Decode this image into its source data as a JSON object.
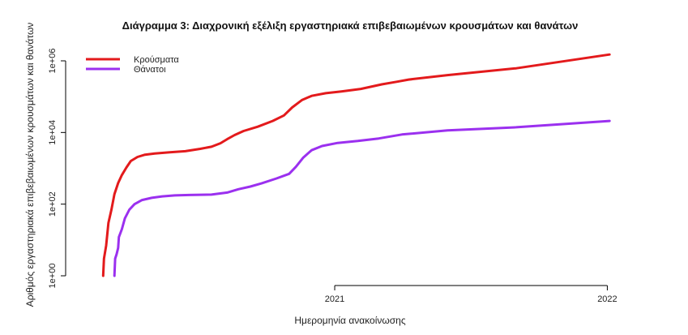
{
  "chart_data": {
    "type": "line",
    "title": "Διάγραμμα 3: Διαχρονική εξέλιξη εργαστηριακά επιβεβαιωμένων κρουσμάτων και θανάτων",
    "xlabel": "Ημερομηνία ανακοίνωσης",
    "ylabel": "Αριθμός εργαστηριακά επιβεβαιωμένων κρουσμάτων και θανάτων",
    "y_scale": "log10",
    "ylim": [
      1,
      1000000
    ],
    "y_ticks": [
      {
        "value": 1,
        "label": "1e+00"
      },
      {
        "value": 100,
        "label": "1e+02"
      },
      {
        "value": 10000,
        "label": "1e+04"
      },
      {
        "value": 1000000,
        "label": "1e+06"
      }
    ],
    "x_ticks": [
      {
        "value": "2021-01-01",
        "label": "2021"
      },
      {
        "value": "2022-01-01",
        "label": "2022"
      }
    ],
    "xlim": [
      "2020-01-23",
      "2022-02-01"
    ],
    "grid": false,
    "legend_position": "top-left",
    "series": [
      {
        "name": "Κρούσματα",
        "color": "#e31a1c",
        "points": [
          [
            "2020-02-26",
            1
          ],
          [
            "2020-02-27",
            3
          ],
          [
            "2020-03-01",
            7
          ],
          [
            "2020-03-04",
            30
          ],
          [
            "2020-03-08",
            70
          ],
          [
            "2020-03-12",
            190
          ],
          [
            "2020-03-17",
            390
          ],
          [
            "2020-03-22",
            650
          ],
          [
            "2020-03-28",
            1050
          ],
          [
            "2020-04-03",
            1600
          ],
          [
            "2020-04-12",
            2080
          ],
          [
            "2020-04-22",
            2400
          ],
          [
            "2020-05-05",
            2600
          ],
          [
            "2020-05-25",
            2800
          ],
          [
            "2020-06-15",
            3000
          ],
          [
            "2020-07-05",
            3500
          ],
          [
            "2020-07-20",
            4000
          ],
          [
            "2020-08-01",
            5000
          ],
          [
            "2020-08-10",
            6500
          ],
          [
            "2020-08-20",
            8500
          ],
          [
            "2020-09-01",
            11000
          ],
          [
            "2020-09-20",
            14500
          ],
          [
            "2020-10-10",
            21000
          ],
          [
            "2020-10-25",
            30000
          ],
          [
            "2020-11-05",
            50000
          ],
          [
            "2020-11-18",
            80000
          ],
          [
            "2020-12-01",
            105000
          ],
          [
            "2020-12-20",
            125000
          ],
          [
            "2021-01-10",
            140000
          ],
          [
            "2021-02-05",
            165000
          ],
          [
            "2021-03-05",
            220000
          ],
          [
            "2021-03-25",
            260000
          ],
          [
            "2021-04-10",
            300000
          ],
          [
            "2021-06-01",
            400000
          ],
          [
            "2021-09-01",
            620000
          ],
          [
            "2022-01-04",
            1500000
          ]
        ]
      },
      {
        "name": "Θάνατοι",
        "color": "#9b30ef",
        "points": [
          [
            "2020-03-12",
            1
          ],
          [
            "2020-03-13",
            3
          ],
          [
            "2020-03-15",
            4
          ],
          [
            "2020-03-17",
            6
          ],
          [
            "2020-03-18",
            12
          ],
          [
            "2020-03-22",
            20
          ],
          [
            "2020-03-26",
            40
          ],
          [
            "2020-04-01",
            70
          ],
          [
            "2020-04-08",
            100
          ],
          [
            "2020-04-18",
            130
          ],
          [
            "2020-05-01",
            150
          ],
          [
            "2020-05-15",
            165
          ],
          [
            "2020-06-01",
            175
          ],
          [
            "2020-06-20",
            180
          ],
          [
            "2020-07-20",
            185
          ],
          [
            "2020-08-10",
            210
          ],
          [
            "2020-08-25",
            260
          ],
          [
            "2020-09-10",
            310
          ],
          [
            "2020-09-25",
            380
          ],
          [
            "2020-10-15",
            520
          ],
          [
            "2020-11-01",
            700
          ],
          [
            "2020-11-10",
            1100
          ],
          [
            "2020-11-20",
            2000
          ],
          [
            "2020-12-01",
            3200
          ],
          [
            "2020-12-15",
            4200
          ],
          [
            "2021-01-05",
            5100
          ],
          [
            "2021-02-01",
            5800
          ],
          [
            "2021-03-01",
            6800
          ],
          [
            "2021-04-01",
            8800
          ],
          [
            "2021-06-01",
            11500
          ],
          [
            "2021-09-01",
            14000
          ],
          [
            "2022-01-04",
            21000
          ]
        ]
      }
    ]
  }
}
